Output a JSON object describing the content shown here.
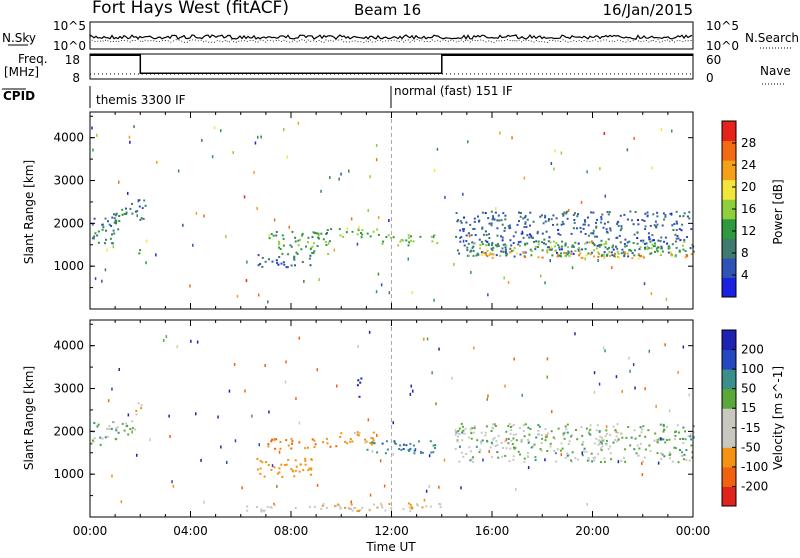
{
  "header": {
    "radar": "Fort Hays West (fitACF)",
    "beam": "Beam 16",
    "date": "16/Jan/2015"
  },
  "top_panels": {
    "nsky_label": "N.Sky",
    "nsky_ticks": [
      "10^5",
      "10^0"
    ],
    "nsearch_label": "N.Search",
    "nsearch_ticks": [
      "10^5",
      "10^0"
    ],
    "freq_label": "Freq.",
    "freq_unit": "[MHz]",
    "freq_ticks": [
      "18",
      "8"
    ],
    "nave_label": "Nave",
    "nave_ticks": [
      "60",
      "0"
    ],
    "cpid_label": "CPID",
    "cpid_modes": [
      "themis 3300 IF",
      "normal (fast) 151 IF"
    ]
  },
  "chart_data": [
    {
      "type": "line",
      "name": "frequency-and-nave",
      "x_unit": "hours UT",
      "freq_mhz": {
        "x": [
          0,
          2.0,
          2.0,
          14.0,
          14.0,
          24
        ],
        "y": [
          17.5,
          17.5,
          10.3,
          10.3,
          17.5,
          17.5
        ]
      },
      "nave_level_dotted": 12,
      "cpid_change_hour": 12.0,
      "freq_ylim": [
        8,
        18
      ],
      "nave_ylim": [
        0,
        60
      ]
    },
    {
      "type": "heatmap",
      "name": "power",
      "ylabel": "Slant Range [km]",
      "xlabel": "Time UT",
      "xticks": [
        "00:00",
        "04:00",
        "08:00",
        "12:00",
        "16:00",
        "20:00",
        "00:00"
      ],
      "yticks": [
        "1000",
        "2000",
        "3000",
        "4000"
      ],
      "ylim": [
        0,
        4600
      ],
      "colorbar_label": "Power [dB]",
      "colorbar_ticks": [
        "4",
        "8",
        "12",
        "16",
        "20",
        "24",
        "28"
      ],
      "colorbar_range": [
        0,
        30
      ],
      "regions": [
        {
          "t0": 0.0,
          "t1": 1.1,
          "r0": 1550,
          "r1": 2250,
          "v": 9
        },
        {
          "t0": 0.8,
          "t1": 1.6,
          "r0": 1900,
          "r1": 2400,
          "v": 8
        },
        {
          "t0": 1.6,
          "t1": 2.2,
          "r0": 2100,
          "r1": 2600,
          "v": 8
        },
        {
          "t0": 1.9,
          "t1": 2.1,
          "r0": 1200,
          "r1": 1500,
          "v": 14
        },
        {
          "t0": 6.6,
          "t1": 8.8,
          "r0": 1000,
          "r1": 1300,
          "v": 6
        },
        {
          "t0": 7.4,
          "t1": 9.6,
          "r0": 1300,
          "r1": 1650,
          "v": 12
        },
        {
          "t0": 7.0,
          "t1": 9.8,
          "r0": 1650,
          "r1": 1850,
          "v": 10
        },
        {
          "t0": 8.8,
          "t1": 11.5,
          "r0": 1700,
          "r1": 1900,
          "v": 13
        },
        {
          "t0": 11.5,
          "t1": 13.8,
          "r0": 1500,
          "r1": 1750,
          "v": 14
        },
        {
          "t0": 14.5,
          "t1": 24.0,
          "r0": 1250,
          "r1": 2300,
          "v": 6
        },
        {
          "t0": 15.0,
          "t1": 24.0,
          "r0": 1250,
          "r1": 1600,
          "v": 13
        },
        {
          "t0": 15.5,
          "t1": 24.0,
          "r0": 1200,
          "r1": 1350,
          "v": 22
        }
      ]
    },
    {
      "type": "heatmap",
      "name": "velocity",
      "ylabel": "Slant Range [km]",
      "xlabel": "Time UT",
      "xticks": [
        "00:00",
        "04:00",
        "08:00",
        "12:00",
        "16:00",
        "20:00",
        "00:00"
      ],
      "yticks": [
        "1000",
        "2000",
        "3000",
        "4000"
      ],
      "ylim": [
        0,
        4600
      ],
      "colorbar_label": "Velocity [m s^-1]",
      "colorbar_ticks": [
        "200",
        "100",
        "50",
        "15",
        "-15",
        "-50",
        "-100",
        "-200"
      ],
      "colorbar_range": [
        -250,
        250
      ],
      "regions": [
        {
          "t0": 0.0,
          "t1": 1.1,
          "r0": 1700,
          "r1": 2250,
          "v": 0
        },
        {
          "t0": 1.0,
          "t1": 1.8,
          "r0": 1950,
          "r1": 2300,
          "v": 0
        },
        {
          "t0": 1.8,
          "t1": 2.2,
          "r0": 2400,
          "r1": 2700,
          "v": -60
        },
        {
          "t0": 6.6,
          "t1": 8.8,
          "r0": 950,
          "r1": 1400,
          "v": -80
        },
        {
          "t0": 7.0,
          "t1": 9.8,
          "r0": 1600,
          "r1": 1850,
          "v": -100
        },
        {
          "t0": 9.8,
          "t1": 11.3,
          "r0": 1700,
          "r1": 2050,
          "v": -60
        },
        {
          "t0": 11.0,
          "t1": 13.8,
          "r0": 1500,
          "r1": 1800,
          "v": 40
        },
        {
          "t0": 14.5,
          "t1": 24.0,
          "r0": 1300,
          "r1": 2200,
          "v": 0
        },
        {
          "t0": 10.6,
          "t1": 10.8,
          "r0": 2700,
          "r1": 3300,
          "v": 200
        },
        {
          "t0": 6.0,
          "t1": 14.0,
          "r0": 150,
          "r1": 350,
          "v": -40
        }
      ]
    }
  ],
  "colors": {
    "power_scale": [
      "#1a22e0",
      "#2f52b8",
      "#3f7a6e",
      "#2e9a3d",
      "#8fcf3c",
      "#f3e63b",
      "#f6a019",
      "#f26b12",
      "#e5231b"
    ],
    "velocity_scale": [
      "#e0231b",
      "#f0620f",
      "#f59214",
      "#c8c8c0",
      "#c8c8c0",
      "#5aa83a",
      "#3a8f8a",
      "#2348c0",
      "#1d22b0"
    ]
  }
}
